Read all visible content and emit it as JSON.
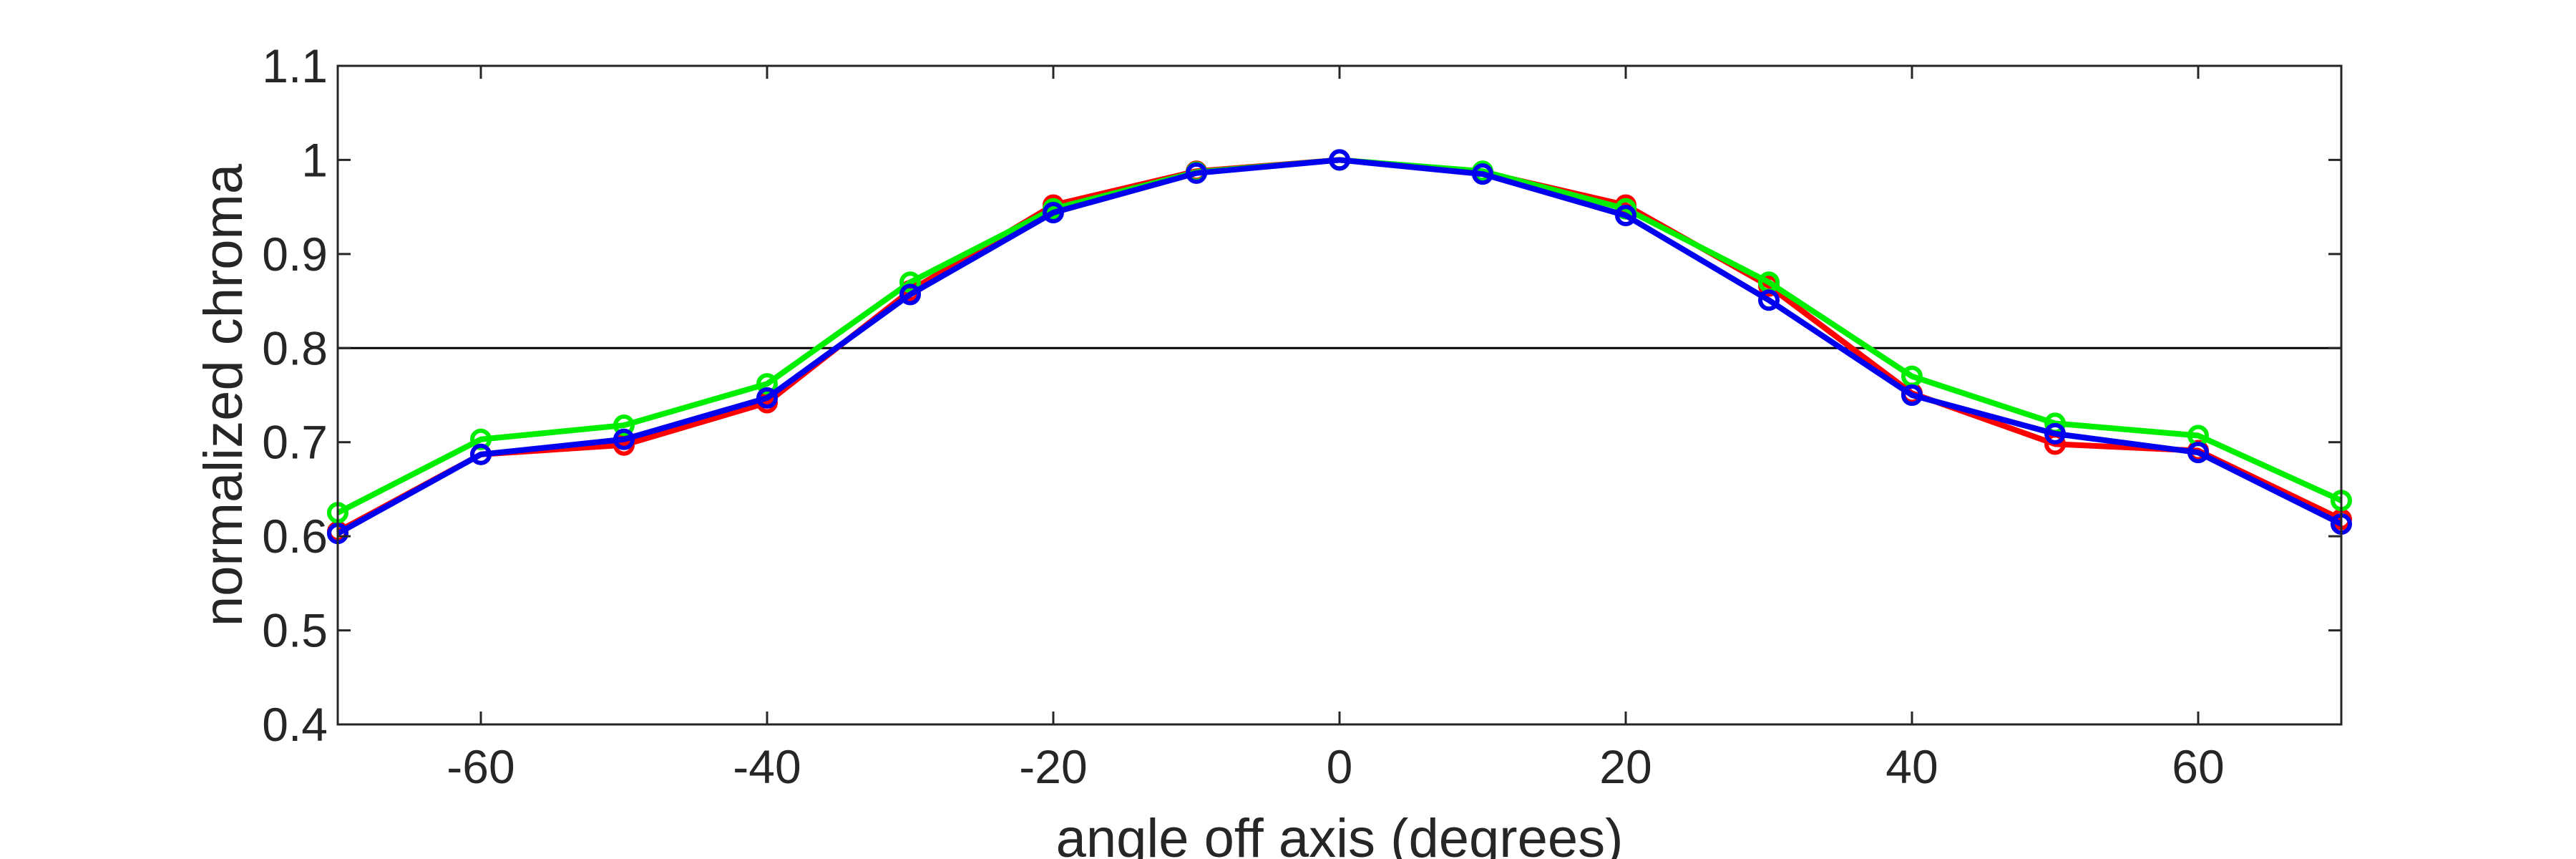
{
  "chart_data": {
    "type": "line",
    "title": "",
    "xlabel": "angle off axis (degrees)",
    "ylabel": "normalized chroma",
    "xlim": [
      -70,
      70
    ],
    "ylim": [
      0.4,
      1.1
    ],
    "xticks": [
      -60,
      -40,
      -20,
      0,
      20,
      40,
      60
    ],
    "xtick_labels": [
      "-60",
      "-40",
      "-20",
      "0",
      "20",
      "40",
      "60"
    ],
    "yticks": [
      0.4,
      0.5,
      0.6,
      0.7,
      0.8,
      0.9,
      1.0,
      1.1
    ],
    "ytick_labels": [
      "0.4",
      "0.5",
      "0.6",
      "0.7",
      "0.8",
      "0.9",
      "1",
      "1.1"
    ],
    "grid": false,
    "legend": "none",
    "reference_line": {
      "y": 0.8,
      "color": "#000000"
    },
    "x": [
      -70,
      -60,
      -50,
      -40,
      -30,
      -20,
      -10,
      0,
      10,
      20,
      30,
      40,
      50,
      60,
      70
    ],
    "series": [
      {
        "color": "#ff0000",
        "values": [
          0.605,
          0.687,
          0.697,
          0.742,
          0.861,
          0.952,
          0.988,
          1.0,
          0.987,
          0.952,
          0.866,
          0.752,
          0.698,
          0.691,
          0.618
        ]
      },
      {
        "color": "#00ee00",
        "values": [
          0.625,
          0.703,
          0.718,
          0.762,
          0.87,
          0.948,
          0.987,
          1.0,
          0.988,
          0.948,
          0.87,
          0.77,
          0.72,
          0.707,
          0.638
        ]
      },
      {
        "color": "#0000ee",
        "values": [
          0.603,
          0.687,
          0.703,
          0.747,
          0.857,
          0.944,
          0.986,
          1.0,
          0.985,
          0.941,
          0.851,
          0.75,
          0.709,
          0.689,
          0.613
        ]
      }
    ]
  }
}
